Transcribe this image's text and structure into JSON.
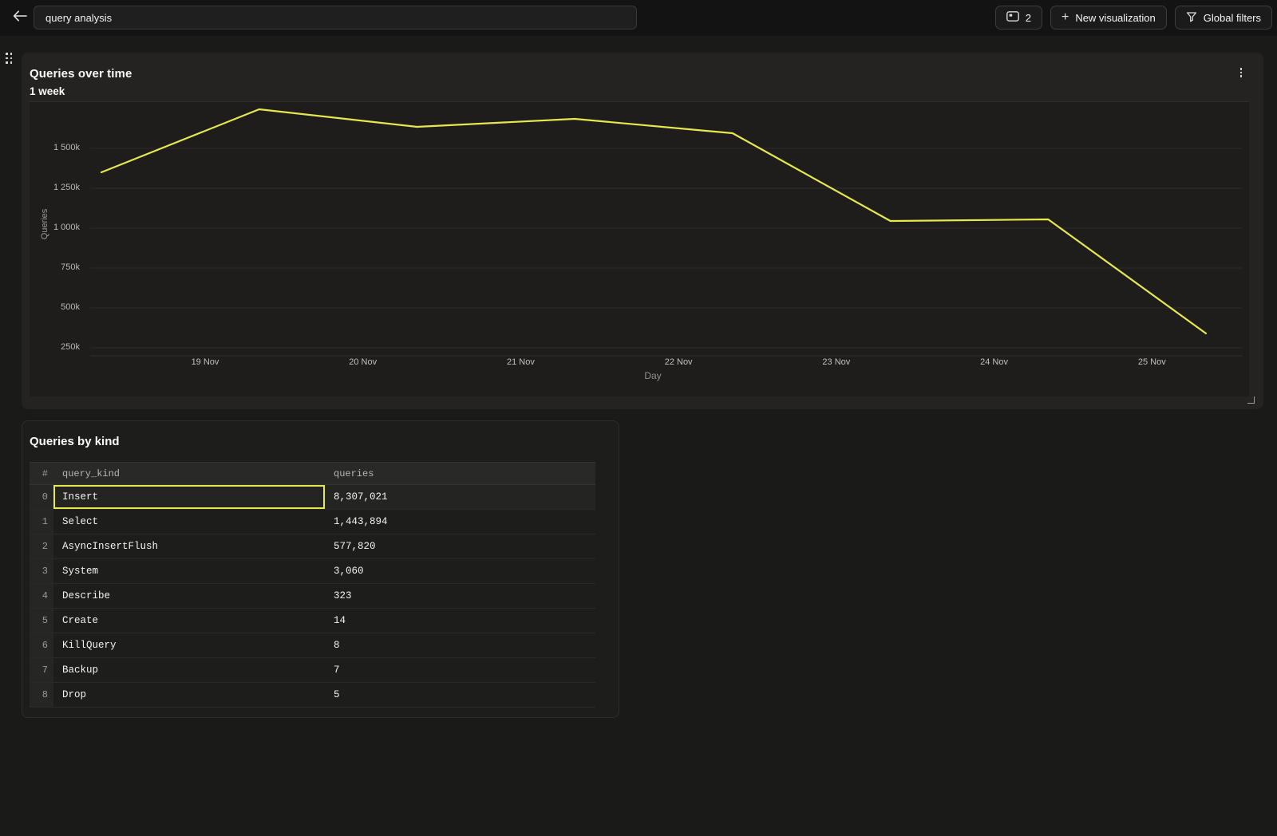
{
  "topbar": {
    "input": {
      "value": "query analysis"
    },
    "buttons": {
      "visualizations_count": {
        "label": "2",
        "icon": "console-window-icon"
      },
      "new_visualization": {
        "label": "New visualization",
        "plus": "+",
        "icon": "plus-icon"
      },
      "global_filters": {
        "label": "Global filters",
        "icon": "funnel-icon"
      }
    }
  },
  "chart_panel": {
    "title": "Queries over time",
    "subtitle": "1 week",
    "menu_icon": "kebab-menu-icon"
  },
  "chart_data": {
    "type": "line",
    "title": "Queries over time",
    "subtitle": "1 week",
    "x": [
      "18 Nov",
      "19 Nov",
      "20 Nov",
      "21 Nov",
      "22 Nov",
      "23 Nov",
      "24 Nov",
      "25 Nov"
    ],
    "values": [
      1350000,
      1745000,
      1635000,
      1685000,
      1595000,
      1045000,
      1055000,
      340000
    ],
    "xlabel": "Day",
    "ylabel": "Queries",
    "x_tick_labels": [
      "19 Nov",
      "20 Nov",
      "21 Nov",
      "22 Nov",
      "23 Nov",
      "24 Nov",
      "25 Nov"
    ],
    "y_tick_labels": [
      "1 500k",
      "1 250k",
      "1 000k",
      "750k",
      "500k",
      "250k"
    ],
    "y_tick_values": [
      1500000,
      1250000,
      1000000,
      750000,
      500000,
      250000
    ],
    "ylim": [
      200000,
      1790000
    ],
    "grid": true,
    "legend": false,
    "line_color": "#e5e94d"
  },
  "table_panel": {
    "title": "Queries by kind",
    "table": {
      "columns": [
        "#",
        "query_kind",
        "queries"
      ],
      "rows": [
        {
          "index": "0",
          "query_kind": "Insert",
          "queries": "8,307,021"
        },
        {
          "index": "1",
          "query_kind": "Select",
          "queries": "1,443,894"
        },
        {
          "index": "2",
          "query_kind": "AsyncInsertFlush",
          "queries": "577,820"
        },
        {
          "index": "3",
          "query_kind": "System",
          "queries": "3,060"
        },
        {
          "index": "4",
          "query_kind": "Describe",
          "queries": "323"
        },
        {
          "index": "5",
          "query_kind": "Create",
          "queries": "14"
        },
        {
          "index": "6",
          "query_kind": "KillQuery",
          "queries": "8"
        },
        {
          "index": "7",
          "query_kind": "Backup",
          "queries": "7"
        },
        {
          "index": "8",
          "query_kind": "Drop",
          "queries": "5"
        }
      ],
      "selected": {
        "row_index": 0,
        "column": "query_kind"
      }
    }
  },
  "colors": {
    "accent": "#e5e94d",
    "selection_border": "#e5e94d"
  }
}
